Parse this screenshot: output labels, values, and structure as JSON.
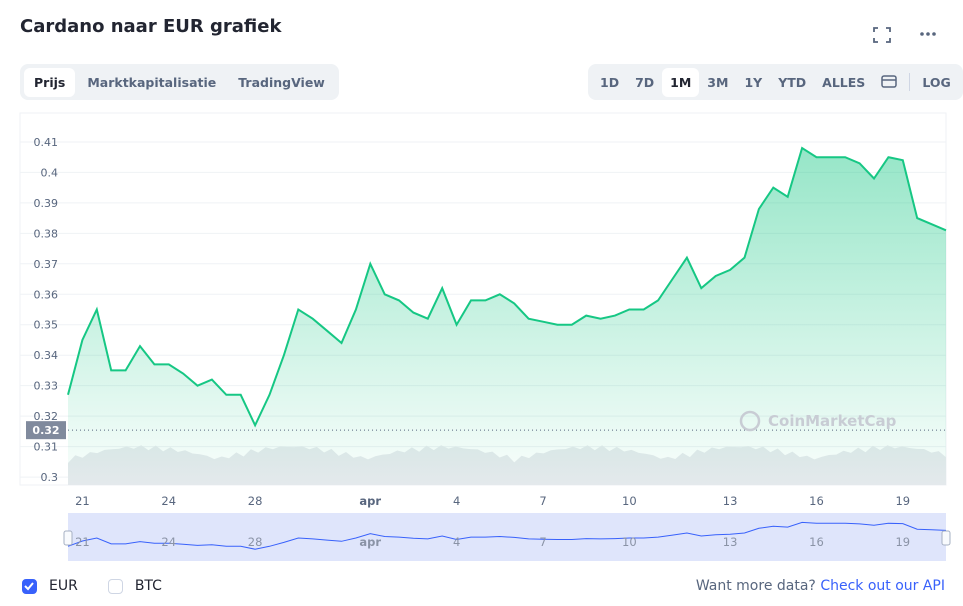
{
  "header": {
    "title": "Cardano naar EUR grafiek",
    "tabs": [
      "Prijs",
      "Marktkapitalisatie",
      "TradingView"
    ],
    "ranges": [
      "1D",
      "7D",
      "1M",
      "3M",
      "1Y",
      "YTD",
      "ALLES"
    ],
    "log": "LOG"
  },
  "chart_data": {
    "type": "line",
    "watermark": "CoinMarketCap",
    "categories": [
      null,
      "21",
      null,
      null,
      null,
      null,
      null,
      "24",
      null,
      null,
      null,
      null,
      null,
      "28",
      null,
      null,
      null,
      null,
      null,
      null,
      null,
      "apr",
      null,
      null,
      null,
      null,
      null,
      "4",
      null,
      null,
      null,
      null,
      null,
      "7",
      null,
      null,
      null,
      null,
      null,
      "10",
      null,
      null,
      null,
      null,
      null,
      null,
      "13",
      null,
      null,
      null,
      null,
      null,
      "16",
      null,
      null,
      null,
      null,
      null,
      "19",
      null,
      null,
      null
    ],
    "series": [
      {
        "name": "EUR",
        "color": "#16c784",
        "values": [
          0.327,
          0.345,
          0.355,
          0.335,
          0.335,
          0.343,
          0.337,
          0.337,
          0.334,
          0.33,
          0.332,
          0.327,
          0.327,
          0.317,
          0.327,
          0.34,
          0.355,
          0.352,
          0.348,
          0.344,
          0.355,
          0.37,
          0.36,
          0.358,
          0.354,
          0.352,
          0.362,
          0.35,
          0.358,
          0.358,
          0.36,
          0.357,
          0.352,
          0.351,
          0.35,
          0.35,
          0.353,
          0.352,
          0.353,
          0.355,
          0.355,
          0.358,
          0.365,
          0.372,
          0.362,
          0.366,
          0.368,
          0.372,
          0.388,
          0.395,
          0.392,
          0.408,
          0.405,
          0.405,
          0.405,
          0.403,
          0.398,
          0.405,
          0.404,
          0.385,
          0.383,
          0.381
        ]
      }
    ],
    "ylim": [
      0.2974,
      0.4195
    ],
    "yticks": [
      0.3,
      0.31,
      0.32,
      0.33,
      0.34,
      0.35,
      0.36,
      0.37,
      0.38,
      0.39,
      0.4,
      0.41
    ],
    "grid": true,
    "reference_line": {
      "value": 0.3154,
      "label": "0.32"
    }
  },
  "legend": {
    "items": [
      "EUR",
      "BTC"
    ],
    "checked": [
      true,
      false
    ]
  },
  "footer": {
    "text": "Want more data?",
    "link": "Check out our API"
  }
}
